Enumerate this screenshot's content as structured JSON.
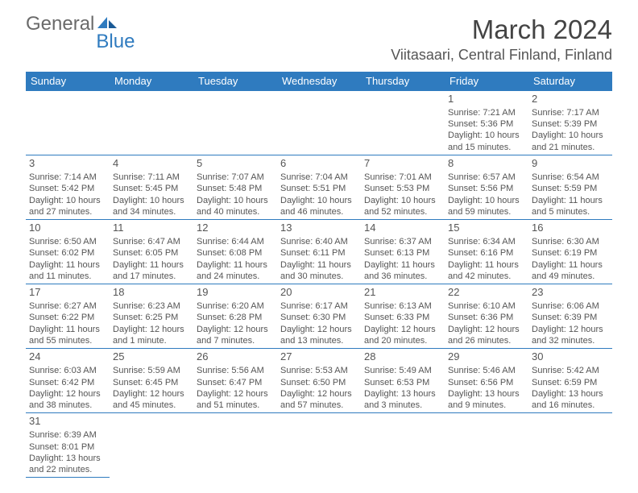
{
  "brand": {
    "part1": "General",
    "part2": "Blue"
  },
  "title": "March 2024",
  "location": "Viitasaari, Central Finland, Finland",
  "colors": {
    "header_bg": "#2f7bbf",
    "header_text": "#ffffff",
    "cell_border": "#2f7bbf",
    "text": "#555555",
    "background": "#ffffff"
  },
  "typography": {
    "title_fontsize": 33,
    "location_fontsize": 18,
    "day_header_fontsize": 13,
    "daynum_fontsize": 13,
    "body_fontsize": 11
  },
  "day_headers": [
    "Sunday",
    "Monday",
    "Tuesday",
    "Wednesday",
    "Thursday",
    "Friday",
    "Saturday"
  ],
  "weeks": [
    [
      null,
      null,
      null,
      null,
      null,
      {
        "n": "1",
        "sunrise": "Sunrise: 7:21 AM",
        "sunset": "Sunset: 5:36 PM",
        "day1": "Daylight: 10 hours",
        "day2": "and 15 minutes."
      },
      {
        "n": "2",
        "sunrise": "Sunrise: 7:17 AM",
        "sunset": "Sunset: 5:39 PM",
        "day1": "Daylight: 10 hours",
        "day2": "and 21 minutes."
      }
    ],
    [
      {
        "n": "3",
        "sunrise": "Sunrise: 7:14 AM",
        "sunset": "Sunset: 5:42 PM",
        "day1": "Daylight: 10 hours",
        "day2": "and 27 minutes."
      },
      {
        "n": "4",
        "sunrise": "Sunrise: 7:11 AM",
        "sunset": "Sunset: 5:45 PM",
        "day1": "Daylight: 10 hours",
        "day2": "and 34 minutes."
      },
      {
        "n": "5",
        "sunrise": "Sunrise: 7:07 AM",
        "sunset": "Sunset: 5:48 PM",
        "day1": "Daylight: 10 hours",
        "day2": "and 40 minutes."
      },
      {
        "n": "6",
        "sunrise": "Sunrise: 7:04 AM",
        "sunset": "Sunset: 5:51 PM",
        "day1": "Daylight: 10 hours",
        "day2": "and 46 minutes."
      },
      {
        "n": "7",
        "sunrise": "Sunrise: 7:01 AM",
        "sunset": "Sunset: 5:53 PM",
        "day1": "Daylight: 10 hours",
        "day2": "and 52 minutes."
      },
      {
        "n": "8",
        "sunrise": "Sunrise: 6:57 AM",
        "sunset": "Sunset: 5:56 PM",
        "day1": "Daylight: 10 hours",
        "day2": "and 59 minutes."
      },
      {
        "n": "9",
        "sunrise": "Sunrise: 6:54 AM",
        "sunset": "Sunset: 5:59 PM",
        "day1": "Daylight: 11 hours",
        "day2": "and 5 minutes."
      }
    ],
    [
      {
        "n": "10",
        "sunrise": "Sunrise: 6:50 AM",
        "sunset": "Sunset: 6:02 PM",
        "day1": "Daylight: 11 hours",
        "day2": "and 11 minutes."
      },
      {
        "n": "11",
        "sunrise": "Sunrise: 6:47 AM",
        "sunset": "Sunset: 6:05 PM",
        "day1": "Daylight: 11 hours",
        "day2": "and 17 minutes."
      },
      {
        "n": "12",
        "sunrise": "Sunrise: 6:44 AM",
        "sunset": "Sunset: 6:08 PM",
        "day1": "Daylight: 11 hours",
        "day2": "and 24 minutes."
      },
      {
        "n": "13",
        "sunrise": "Sunrise: 6:40 AM",
        "sunset": "Sunset: 6:11 PM",
        "day1": "Daylight: 11 hours",
        "day2": "and 30 minutes."
      },
      {
        "n": "14",
        "sunrise": "Sunrise: 6:37 AM",
        "sunset": "Sunset: 6:13 PM",
        "day1": "Daylight: 11 hours",
        "day2": "and 36 minutes."
      },
      {
        "n": "15",
        "sunrise": "Sunrise: 6:34 AM",
        "sunset": "Sunset: 6:16 PM",
        "day1": "Daylight: 11 hours",
        "day2": "and 42 minutes."
      },
      {
        "n": "16",
        "sunrise": "Sunrise: 6:30 AM",
        "sunset": "Sunset: 6:19 PM",
        "day1": "Daylight: 11 hours",
        "day2": "and 49 minutes."
      }
    ],
    [
      {
        "n": "17",
        "sunrise": "Sunrise: 6:27 AM",
        "sunset": "Sunset: 6:22 PM",
        "day1": "Daylight: 11 hours",
        "day2": "and 55 minutes."
      },
      {
        "n": "18",
        "sunrise": "Sunrise: 6:23 AM",
        "sunset": "Sunset: 6:25 PM",
        "day1": "Daylight: 12 hours",
        "day2": "and 1 minute."
      },
      {
        "n": "19",
        "sunrise": "Sunrise: 6:20 AM",
        "sunset": "Sunset: 6:28 PM",
        "day1": "Daylight: 12 hours",
        "day2": "and 7 minutes."
      },
      {
        "n": "20",
        "sunrise": "Sunrise: 6:17 AM",
        "sunset": "Sunset: 6:30 PM",
        "day1": "Daylight: 12 hours",
        "day2": "and 13 minutes."
      },
      {
        "n": "21",
        "sunrise": "Sunrise: 6:13 AM",
        "sunset": "Sunset: 6:33 PM",
        "day1": "Daylight: 12 hours",
        "day2": "and 20 minutes."
      },
      {
        "n": "22",
        "sunrise": "Sunrise: 6:10 AM",
        "sunset": "Sunset: 6:36 PM",
        "day1": "Daylight: 12 hours",
        "day2": "and 26 minutes."
      },
      {
        "n": "23",
        "sunrise": "Sunrise: 6:06 AM",
        "sunset": "Sunset: 6:39 PM",
        "day1": "Daylight: 12 hours",
        "day2": "and 32 minutes."
      }
    ],
    [
      {
        "n": "24",
        "sunrise": "Sunrise: 6:03 AM",
        "sunset": "Sunset: 6:42 PM",
        "day1": "Daylight: 12 hours",
        "day2": "and 38 minutes."
      },
      {
        "n": "25",
        "sunrise": "Sunrise: 5:59 AM",
        "sunset": "Sunset: 6:45 PM",
        "day1": "Daylight: 12 hours",
        "day2": "and 45 minutes."
      },
      {
        "n": "26",
        "sunrise": "Sunrise: 5:56 AM",
        "sunset": "Sunset: 6:47 PM",
        "day1": "Daylight: 12 hours",
        "day2": "and 51 minutes."
      },
      {
        "n": "27",
        "sunrise": "Sunrise: 5:53 AM",
        "sunset": "Sunset: 6:50 PM",
        "day1": "Daylight: 12 hours",
        "day2": "and 57 minutes."
      },
      {
        "n": "28",
        "sunrise": "Sunrise: 5:49 AM",
        "sunset": "Sunset: 6:53 PM",
        "day1": "Daylight: 13 hours",
        "day2": "and 3 minutes."
      },
      {
        "n": "29",
        "sunrise": "Sunrise: 5:46 AM",
        "sunset": "Sunset: 6:56 PM",
        "day1": "Daylight: 13 hours",
        "day2": "and 9 minutes."
      },
      {
        "n": "30",
        "sunrise": "Sunrise: 5:42 AM",
        "sunset": "Sunset: 6:59 PM",
        "day1": "Daylight: 13 hours",
        "day2": "and 16 minutes."
      }
    ],
    [
      {
        "n": "31",
        "sunrise": "Sunrise: 6:39 AM",
        "sunset": "Sunset: 8:01 PM",
        "day1": "Daylight: 13 hours",
        "day2": "and 22 minutes."
      },
      null,
      null,
      null,
      null,
      null,
      null
    ]
  ]
}
